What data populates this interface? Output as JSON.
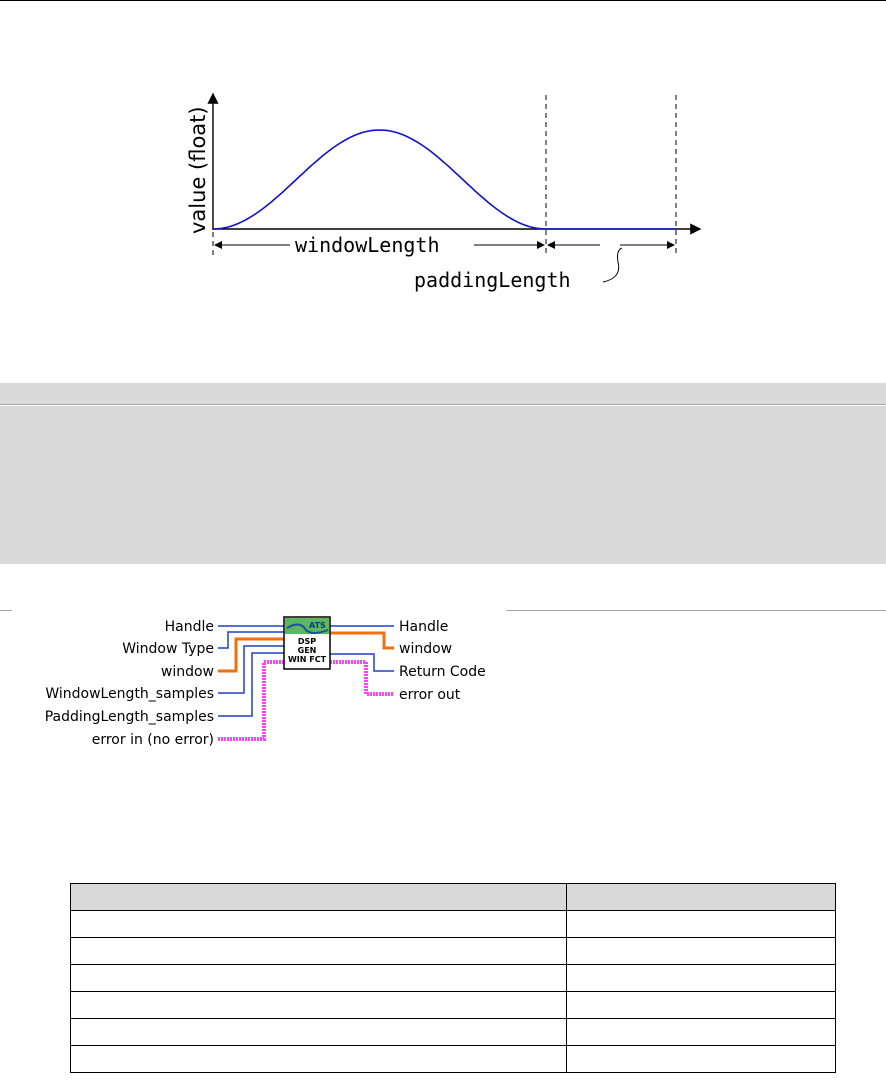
{
  "figure": {
    "ylabel": "value (float)",
    "window_label": "windowLength",
    "padding_label": "paddingLength",
    "colors": {
      "curve": "#1010d0",
      "axis": "#000000"
    }
  },
  "connector_pane": {
    "icon": {
      "header": "ATS",
      "lines": [
        "DSP",
        "GEN",
        "WIN FCT"
      ]
    },
    "inputs": [
      {
        "label": "Handle",
        "wire": "blue"
      },
      {
        "label": "Window Type",
        "wire": "blue"
      },
      {
        "label": "window",
        "wire": "orange"
      },
      {
        "label": "WindowLength_samples",
        "wire": "blue"
      },
      {
        "label": "PaddingLength_samples",
        "wire": "blue"
      },
      {
        "label": "error in (no error)",
        "wire": "pink"
      }
    ],
    "outputs": [
      {
        "label": "Handle",
        "wire": "blue"
      },
      {
        "label": "window",
        "wire": "orange"
      },
      {
        "label": "Return Code",
        "wire": "blue"
      },
      {
        "label": "error out",
        "wire": "pink"
      }
    ],
    "colors": {
      "blue": "#2040c8",
      "orange": "#f07010",
      "pink": "#ff40ff",
      "icon_header": "#5cb860"
    }
  },
  "table": {
    "headers": [
      "",
      ""
    ],
    "rows": [
      [
        "",
        ""
      ],
      [
        "",
        ""
      ],
      [
        "",
        ""
      ],
      [
        "",
        ""
      ],
      [
        "",
        ""
      ],
      [
        "",
        ""
      ]
    ]
  }
}
